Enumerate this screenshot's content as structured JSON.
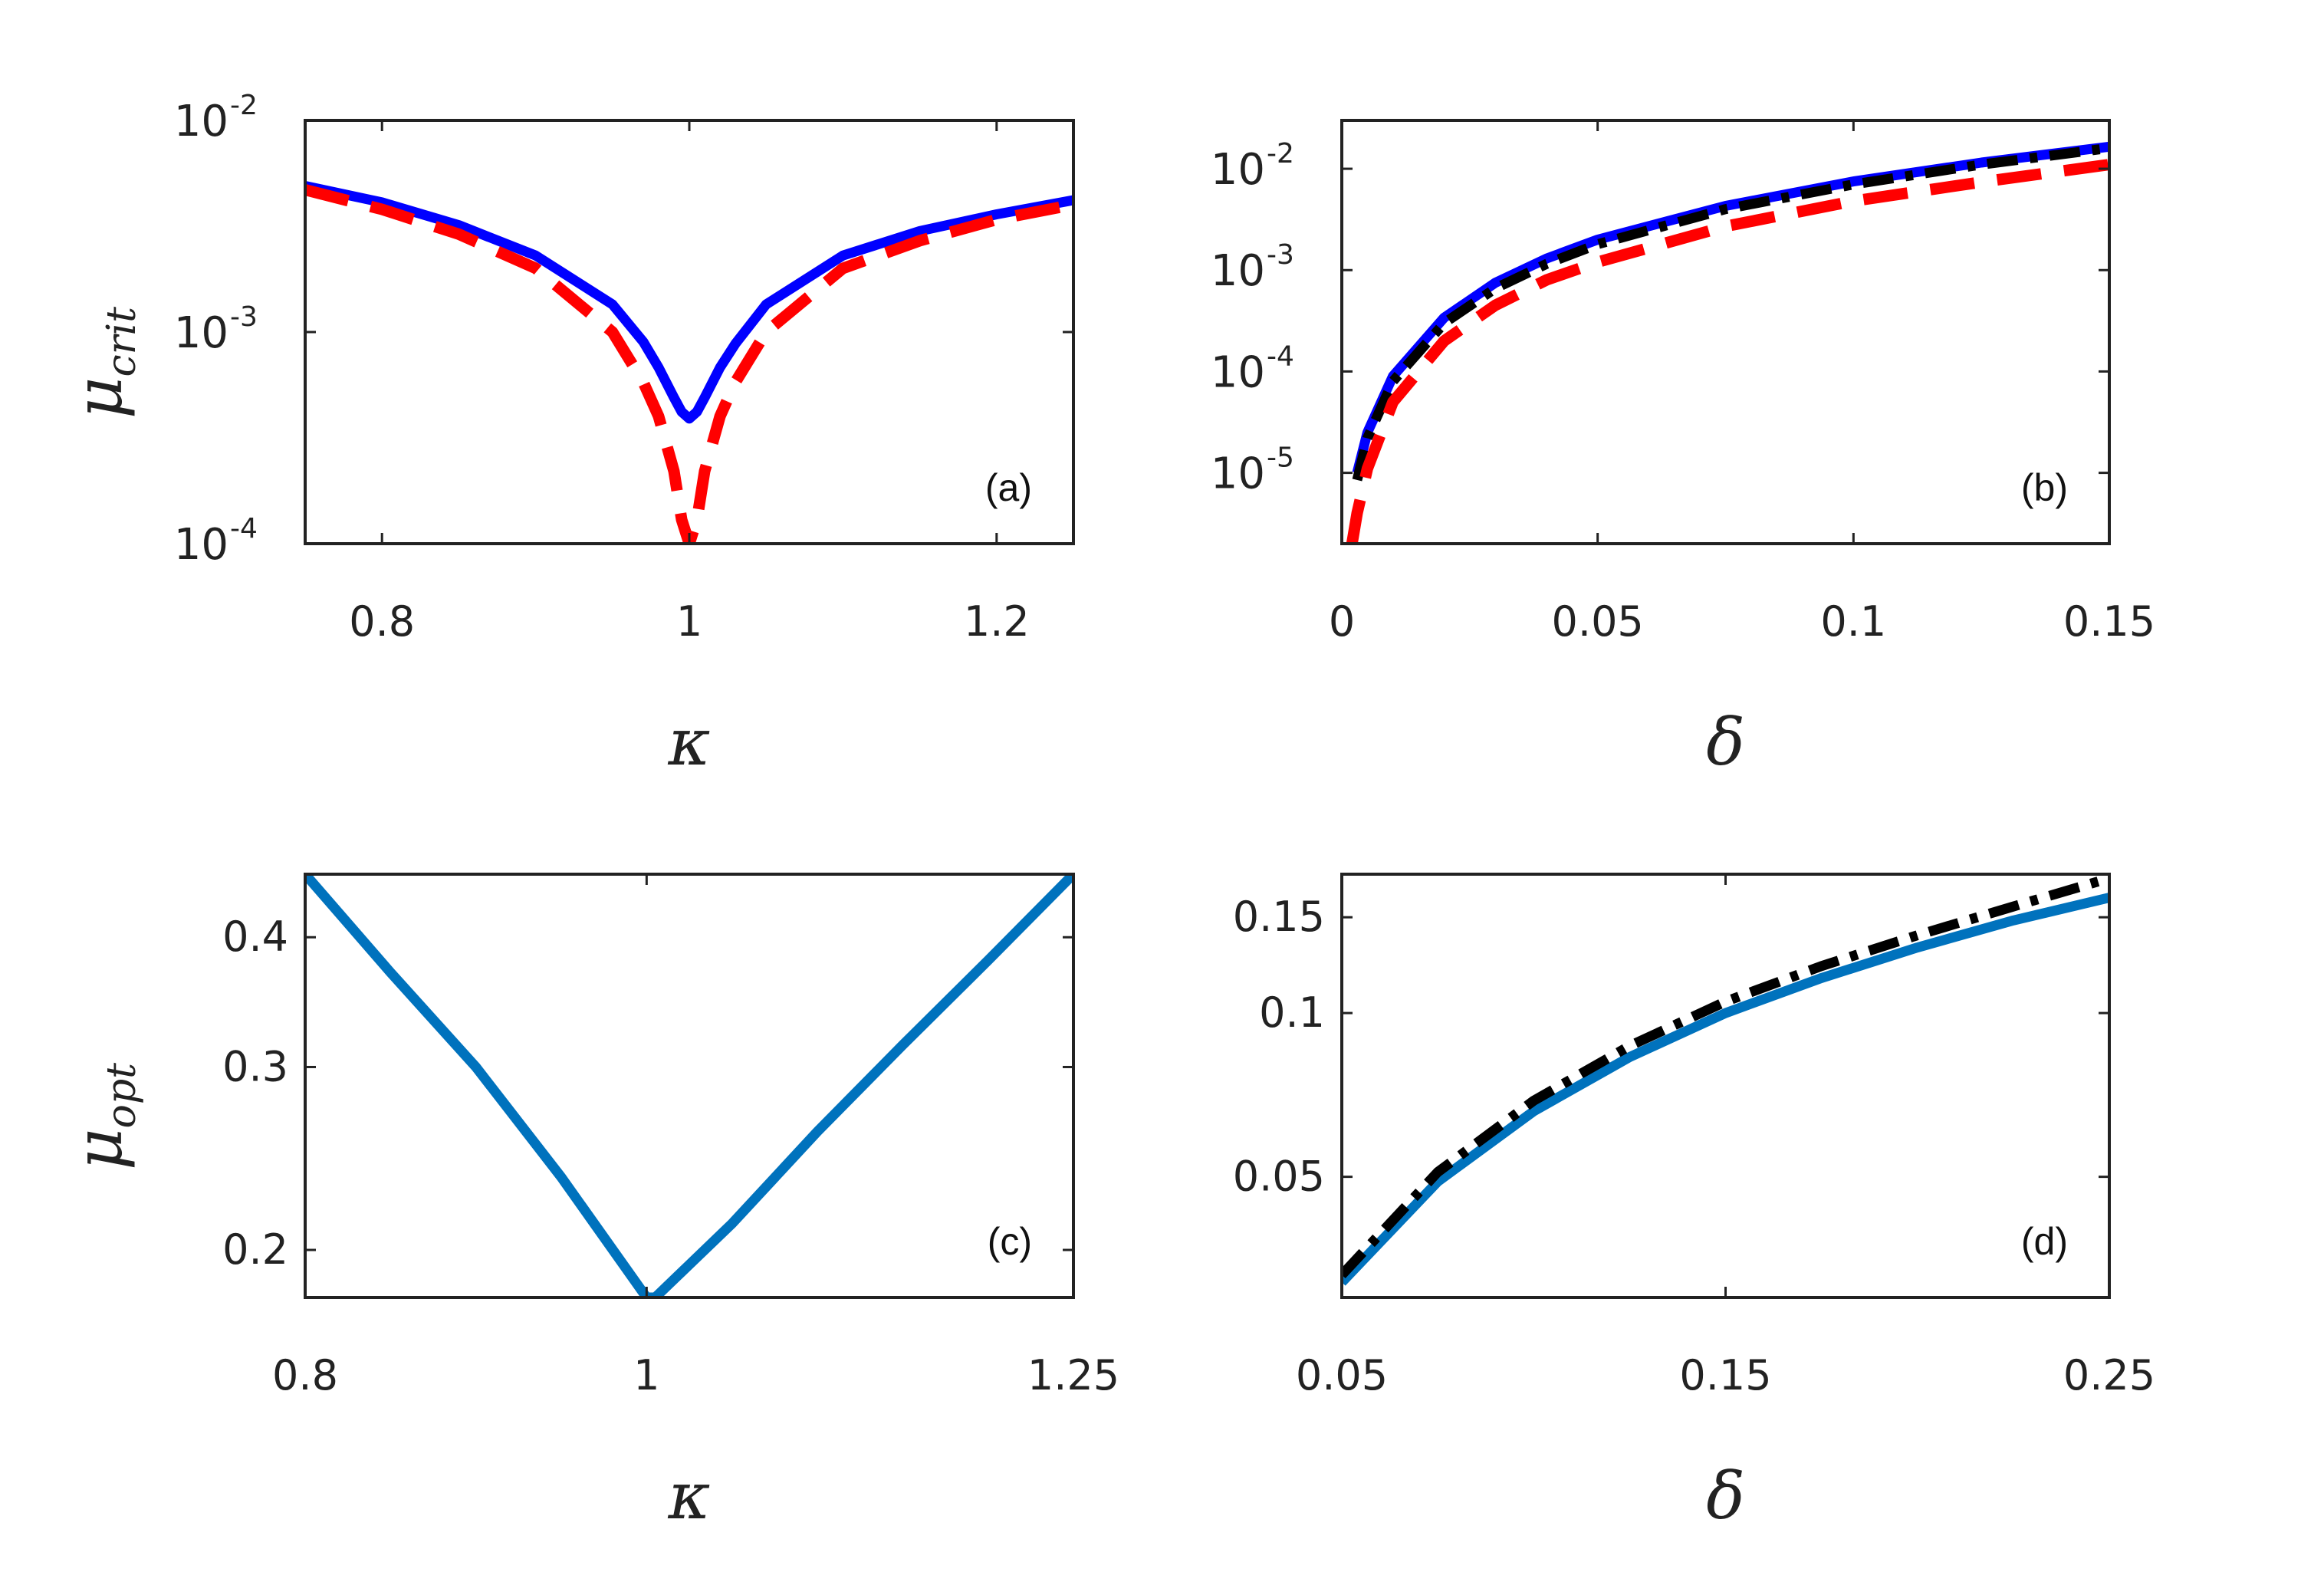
{
  "colors": {
    "blue": "#0000ff",
    "red": "#ff0000",
    "black": "#000000",
    "steel": "#0072bd"
  },
  "chart_data": [
    {
      "type": "line",
      "panel": "(a)",
      "xlabel": "κ",
      "ylabel": {
        "base": "μ",
        "sub": "crit"
      },
      "xlim": [
        0.75,
        1.25
      ],
      "ylim": [
        0.0001,
        0.01
      ],
      "yscale": "log",
      "xticks": [
        {
          "v": 0.8,
          "label": "0.8"
        },
        {
          "v": 1.0,
          "label": "1"
        },
        {
          "v": 1.2,
          "label": "1.2"
        }
      ],
      "yticks": [
        {
          "v": 0.0001,
          "base": "10",
          "exp": "-4"
        },
        {
          "v": 0.001,
          "base": "10",
          "exp": "-3"
        },
        {
          "v": 0.01,
          "base": "10",
          "exp": "-2"
        }
      ],
      "series": [
        {
          "color": "#0000ff",
          "style": "solid",
          "x": [
            0.75,
            0.8,
            0.85,
            0.9,
            0.95,
            0.97,
            0.98,
            0.99,
            0.995,
            1.0,
            1.005,
            1.01,
            1.02,
            1.03,
            1.05,
            1.1,
            1.15,
            1.2,
            1.25
          ],
          "y": [
            0.0049,
            0.0041,
            0.0032,
            0.0023,
            0.00135,
            0.0009,
            0.00068,
            0.00049,
            0.00042,
            0.00039,
            0.00042,
            0.00049,
            0.00068,
            0.00088,
            0.00135,
            0.0023,
            0.003,
            0.0036,
            0.0042
          ]
        },
        {
          "color": "#ff0000",
          "style": "dashed",
          "x": [
            0.75,
            0.8,
            0.85,
            0.9,
            0.95,
            0.97,
            0.98,
            0.99,
            0.995,
            1.0,
            1.005,
            1.01,
            1.02,
            1.03,
            1.05,
            1.1,
            1.15,
            1.2,
            1.25
          ],
          "y": [
            0.0047,
            0.0038,
            0.0029,
            0.002,
            0.001,
            0.00058,
            0.0004,
            0.00022,
            0.00013,
            0.0001,
            0.00013,
            0.00022,
            0.0004,
            0.00058,
            0.001,
            0.002,
            0.0027,
            0.0034,
            0.004
          ]
        }
      ]
    },
    {
      "type": "line",
      "panel": "(b)",
      "xlabel": "δ",
      "xlim": [
        0,
        0.15
      ],
      "ylim": [
        2e-06,
        0.03
      ],
      "yscale": "log",
      "xticks": [
        {
          "v": 0,
          "label": "0"
        },
        {
          "v": 0.05,
          "label": "0.05"
        },
        {
          "v": 0.1,
          "label": "0.1"
        },
        {
          "v": 0.15,
          "label": "0.15"
        }
      ],
      "yticks": [
        {
          "v": 1e-05,
          "base": "10",
          "exp": "-5"
        },
        {
          "v": 0.0001,
          "base": "10",
          "exp": "-4"
        },
        {
          "v": 0.001,
          "base": "10",
          "exp": "-3"
        },
        {
          "v": 0.01,
          "base": "10",
          "exp": "-2"
        }
      ],
      "series": [
        {
          "color": "#0000ff",
          "style": "solid",
          "x": [
            0.003,
            0.005,
            0.01,
            0.02,
            0.03,
            0.04,
            0.05,
            0.075,
            0.1,
            0.125,
            0.15
          ],
          "y": [
            1e-05,
            2.5e-05,
            9e-05,
            0.00034,
            0.00075,
            0.0013,
            0.002,
            0.0043,
            0.0075,
            0.0115,
            0.0165
          ]
        },
        {
          "color": "#000000",
          "style": "dashdot",
          "x": [
            0.003,
            0.005,
            0.01,
            0.02,
            0.03,
            0.04,
            0.05,
            0.075,
            0.1,
            0.125,
            0.15
          ],
          "y": [
            8.5e-06,
            2.2e-05,
            8e-05,
            0.0003,
            0.00066,
            0.00115,
            0.0018,
            0.004,
            0.007,
            0.011,
            0.016
          ]
        },
        {
          "color": "#ff0000",
          "style": "dashed",
          "x": [
            0.002,
            0.003,
            0.005,
            0.01,
            0.02,
            0.03,
            0.04,
            0.05,
            0.075,
            0.1,
            0.125,
            0.15
          ],
          "y": [
            2e-06,
            4e-06,
            1.1e-05,
            5e-05,
            0.0002,
            0.00045,
            0.0008,
            0.0012,
            0.0027,
            0.0048,
            0.0074,
            0.011
          ]
        }
      ]
    },
    {
      "type": "line",
      "panel": "(c)",
      "xlabel": "κ",
      "ylabel": {
        "base": "μ",
        "sub": "opt"
      },
      "xlim": [
        0.8,
        1.25
      ],
      "ylim": [
        0.18,
        0.46
      ],
      "yscale": "log",
      "xticks": [
        {
          "v": 0.8,
          "label": "0.8"
        },
        {
          "v": 1.0,
          "label": "1"
        },
        {
          "v": 1.25,
          "label": "1.25"
        }
      ],
      "yticks": [
        {
          "v": 0.2,
          "label": "0.2"
        },
        {
          "v": 0.3,
          "label": "0.3"
        },
        {
          "v": 0.4,
          "label": "0.4"
        }
      ],
      "series": [
        {
          "color": "#0072bd",
          "style": "solid",
          "x": [
            0.8,
            0.85,
            0.9,
            0.95,
            1.0,
            1.005,
            1.05,
            1.1,
            1.15,
            1.2,
            1.25
          ],
          "y": [
            0.46,
            0.37,
            0.3,
            0.235,
            0.18,
            0.18,
            0.212,
            0.26,
            0.315,
            0.38,
            0.46
          ]
        }
      ]
    },
    {
      "type": "line",
      "panel": "(d)",
      "xlabel": "δ",
      "xlim": [
        0.05,
        0.25
      ],
      "ylim": [
        0.03,
        0.18
      ],
      "yscale": "log",
      "xticks": [
        {
          "v": 0.05,
          "label": "0.05"
        },
        {
          "v": 0.15,
          "label": "0.15"
        },
        {
          "v": 0.25,
          "label": "0.25"
        }
      ],
      "yticks": [
        {
          "v": 0.05,
          "label": "0.05"
        },
        {
          "v": 0.1,
          "label": "0.1"
        },
        {
          "v": 0.15,
          "label": "0.15"
        }
      ],
      "series": [
        {
          "color": "#0072bd",
          "style": "solid",
          "x": [
            0.05,
            0.075,
            0.1,
            0.125,
            0.15,
            0.175,
            0.2,
            0.225,
            0.25
          ],
          "y": [
            0.032,
            0.049,
            0.066,
            0.083,
            0.1,
            0.116,
            0.132,
            0.148,
            0.163
          ]
        },
        {
          "color": "#000000",
          "style": "dashdot",
          "x": [
            0.05,
            0.075,
            0.1,
            0.125,
            0.15,
            0.175,
            0.2,
            0.225,
            0.25
          ],
          "y": [
            0.033,
            0.051,
            0.069,
            0.087,
            0.105,
            0.122,
            0.139,
            0.157,
            0.177
          ]
        }
      ]
    }
  ]
}
